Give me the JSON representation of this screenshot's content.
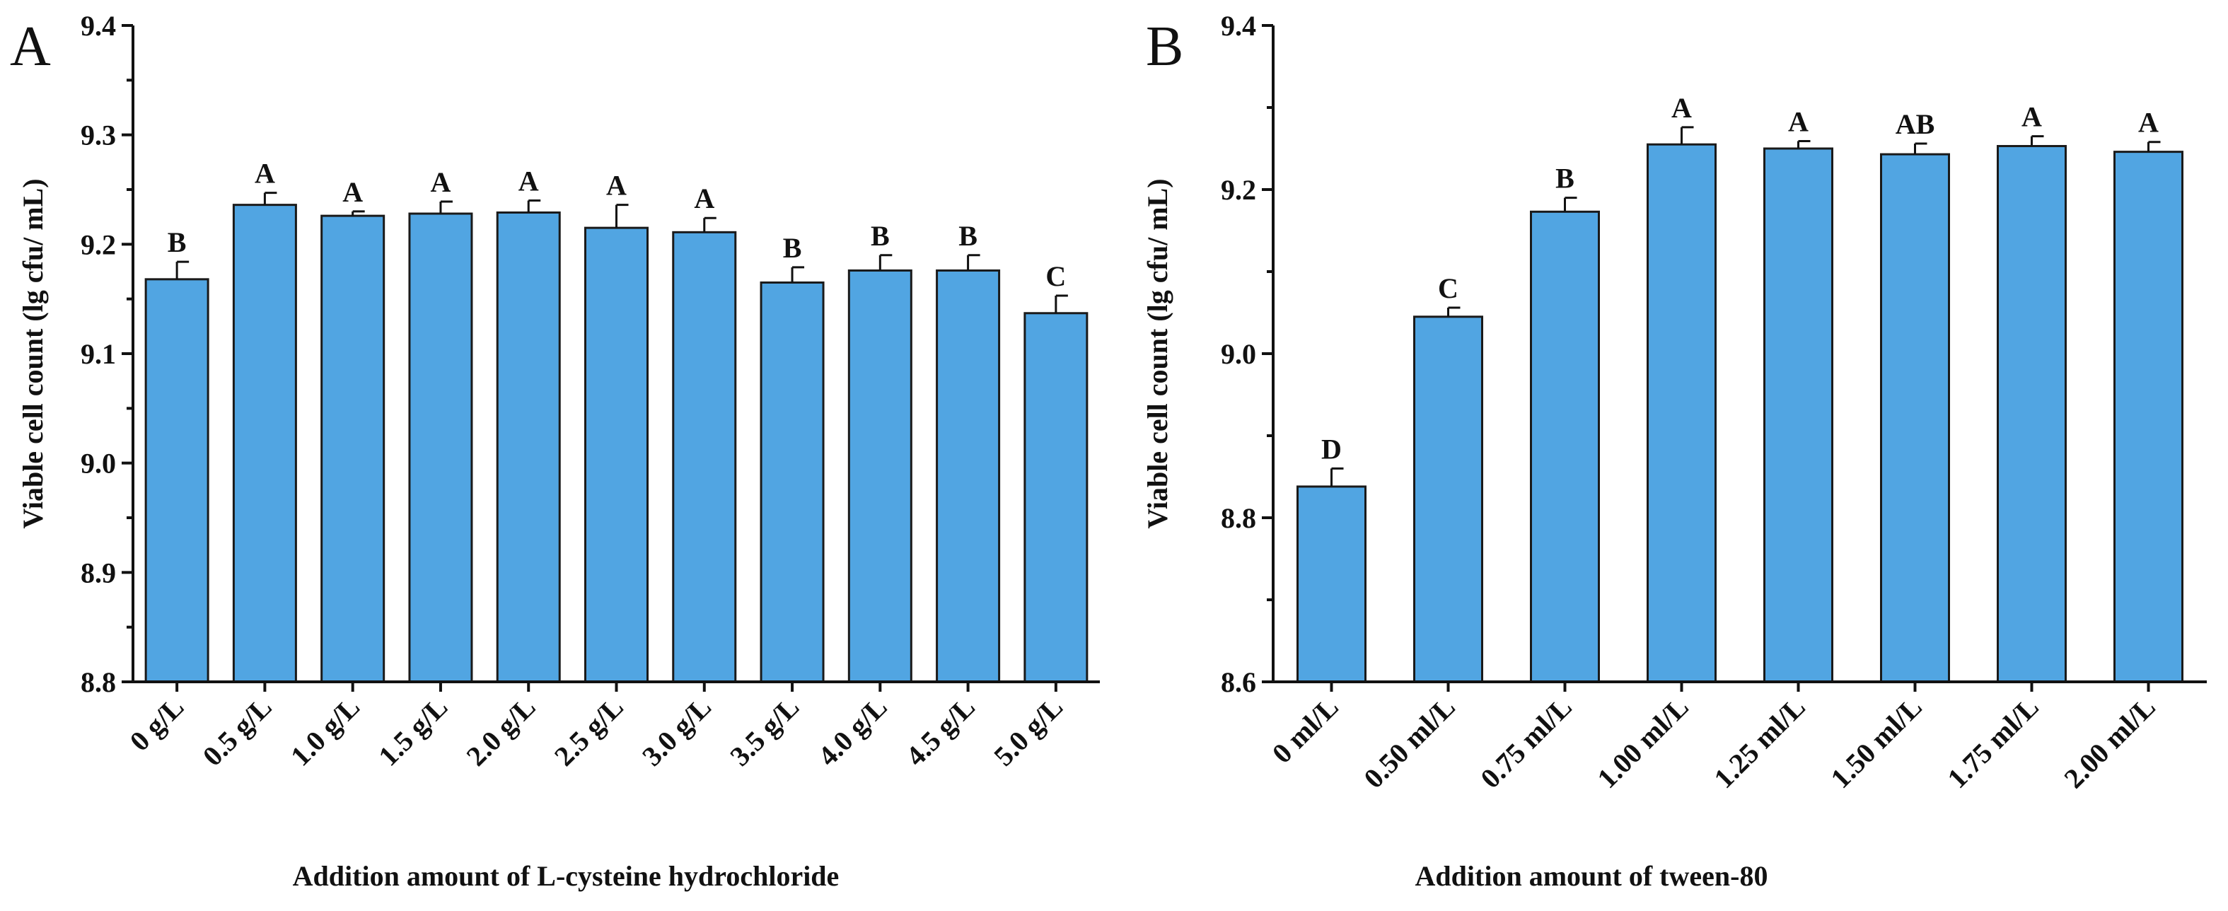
{
  "colors": {
    "bar_fill": "#51A5E2",
    "bar_stroke": "#1a1a1a",
    "axis": "#111111"
  },
  "chart_data": [
    {
      "panel": "A",
      "type": "bar",
      "ylabel": "Viable cell count (lg cfu/ mL)",
      "xlabel": "Addition amount of L-cysteine hydrochloride",
      "ylim": [
        8.8,
        9.4
      ],
      "yticks": [
        "8.8",
        "8.9",
        "9.0",
        "9.1",
        "9.2",
        "9.3",
        "9.4"
      ],
      "categories": [
        "0 g/L",
        "0.5 g/L",
        "1.0 g/L",
        "1.5 g/L",
        "2.0 g/L",
        "2.5 g/L",
        "3.0 g/L",
        "3.5 g/L",
        "4.0 g/L",
        "4.5 g/L",
        "5.0 g/L"
      ],
      "values": [
        9.168,
        9.236,
        9.226,
        9.228,
        9.229,
        9.215,
        9.211,
        9.165,
        9.176,
        9.176,
        9.137
      ],
      "errors": [
        0.016,
        0.011,
        0.004,
        0.011,
        0.011,
        0.021,
        0.013,
        0.014,
        0.014,
        0.014,
        0.016
      ],
      "significance": [
        "B",
        "A",
        "A",
        "A",
        "A",
        "A",
        "A",
        "B",
        "B",
        "B",
        "C"
      ]
    },
    {
      "panel": "B",
      "type": "bar",
      "ylabel": "Viable cell count (lg cfu/ mL)",
      "xlabel": "Addition amount of tween-80",
      "ylim": [
        8.6,
        9.4
      ],
      "yticks": [
        "8.6",
        "8.8",
        "9.0",
        "9.2",
        "9.4"
      ],
      "categories": [
        "0 ml/L",
        "0.50 ml/L",
        "0.75 ml/L",
        "1.00 ml/L",
        "1.25 ml/L",
        "1.50 ml/L",
        "1.75 ml/L",
        "2.00 ml/L"
      ],
      "values": [
        8.838,
        9.045,
        9.173,
        9.255,
        9.25,
        9.243,
        9.253,
        9.246
      ],
      "errors": [
        0.022,
        0.011,
        0.017,
        0.021,
        0.009,
        0.013,
        0.012,
        0.012
      ],
      "significance": [
        "D",
        "C",
        "B",
        "A",
        "A",
        "AB",
        "A",
        "A"
      ]
    }
  ]
}
